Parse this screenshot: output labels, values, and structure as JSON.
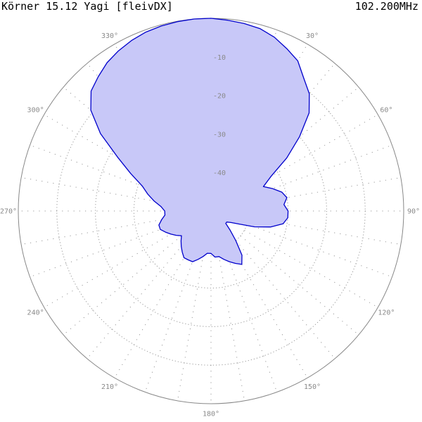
{
  "header": {
    "title": "Körner 15.12 Yagi [fleivDX]",
    "frequency": "102.200MHz"
  },
  "chart_data": {
    "type": "polar",
    "title": "Körner 15.12 Yagi [fleivDX]",
    "subtitle": "102.200MHz",
    "angle_ticks": [
      {
        "angle": 0,
        "label": ""
      },
      {
        "angle": 30,
        "label": "30°"
      },
      {
        "angle": 60,
        "label": "60°"
      },
      {
        "angle": 90,
        "label": "90°"
      },
      {
        "angle": 120,
        "label": "120°"
      },
      {
        "angle": 150,
        "label": "150°"
      },
      {
        "angle": 180,
        "label": "180°"
      },
      {
        "angle": 210,
        "label": "210°"
      },
      {
        "angle": 240,
        "label": "240°"
      },
      {
        "angle": 270,
        "label": "270°"
      },
      {
        "angle": 300,
        "label": "300°"
      },
      {
        "angle": 330,
        "label": "330°"
      }
    ],
    "radial_ticks": [
      {
        "value": -10,
        "label": "-10"
      },
      {
        "value": -20,
        "label": "-20"
      },
      {
        "value": -30,
        "label": "-30"
      },
      {
        "value": -40,
        "label": "-40"
      }
    ],
    "radial_range_db": [
      -50,
      0
    ],
    "grid": true,
    "colors": {
      "fill": "#c8c8f8",
      "stroke": "#0000cc",
      "grid": "#999999",
      "outer": "#888888"
    },
    "series": [
      {
        "angles_deg": [
          0,
          5,
          10,
          15,
          20,
          25,
          30,
          35,
          40,
          45,
          50,
          55,
          60,
          65,
          70,
          75,
          80,
          85,
          90,
          95,
          100,
          105,
          110,
          115,
          120,
          125,
          130,
          135,
          140,
          145,
          150,
          155,
          160,
          165,
          170,
          175,
          180,
          185,
          190,
          195,
          200,
          205,
          210,
          215,
          220,
          225,
          230,
          235,
          240,
          245,
          250,
          255,
          260,
          265,
          270,
          275,
          280,
          285,
          290,
          295,
          300,
          305,
          310,
          315,
          320,
          325,
          330,
          335,
          340,
          345,
          350,
          355
        ],
        "gain_db": [
          0,
          -0.3,
          -0.6,
          -1,
          -2,
          -3.5,
          -5,
          -8,
          -10.3,
          -14,
          -20,
          -26,
          -32,
          -35,
          -33,
          -31,
          -30,
          -31,
          -30,
          -30,
          -31,
          -34,
          -38,
          -42,
          -44,
          -45,
          -45,
          -43,
          -40,
          -36,
          -34,
          -35,
          -36,
          -37,
          -38,
          -38,
          -39,
          -39,
          -38,
          -37,
          -36,
          -36,
          -36,
          -37,
          -38,
          -39,
          -40,
          -39,
          -38,
          -37,
          -36,
          -36,
          -37,
          -38,
          -38,
          -37,
          -35,
          -33,
          -31,
          -27,
          -22,
          -15,
          -9.3,
          -6,
          -4.5,
          -3,
          -2,
          -1.2,
          -0.6,
          -0.3,
          -0.1,
          0
        ]
      }
    ]
  }
}
